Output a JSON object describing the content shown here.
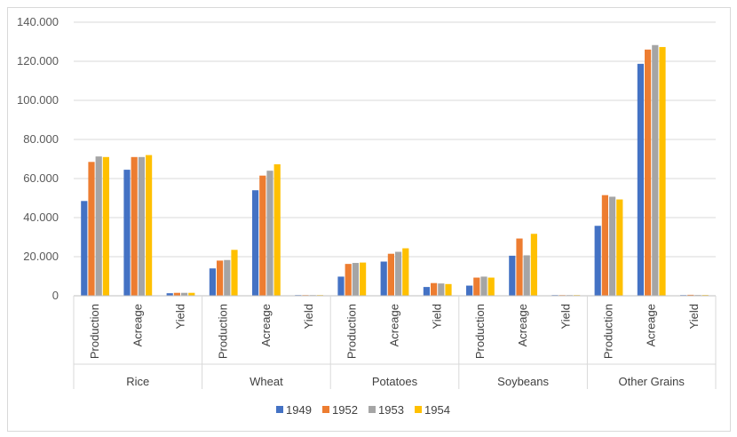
{
  "chart_data": {
    "type": "bar",
    "title": "",
    "xlabel": "",
    "ylabel": "",
    "ylim": [
      0,
      140000
    ],
    "yticks": [
      "0",
      "20.000",
      "40.000",
      "60.000",
      "80.000",
      "100.000",
      "120.000",
      "140.000"
    ],
    "ytick_values": [
      0,
      20000,
      40000,
      60000,
      80000,
      100000,
      120000,
      140000
    ],
    "grid": "horizontal",
    "legend_position": "bottom",
    "groups": [
      "Rice",
      "Wheat",
      "Potatoes",
      "Soybeans",
      "Other Grains"
    ],
    "subcategories": [
      "Production",
      "Acreage",
      "Yield"
    ],
    "series": [
      {
        "name": "1949",
        "color": "#4472C4",
        "values": [
          48500,
          64500,
          1300,
          14000,
          54000,
          300,
          9800,
          17500,
          4500,
          5200,
          20500,
          300,
          35800,
          118700,
          300
        ]
      },
      {
        "name": "1952",
        "color": "#ED7D31",
        "values": [
          68500,
          71000,
          1500,
          18000,
          61500,
          300,
          16300,
          21500,
          6500,
          9300,
          29300,
          300,
          51500,
          126000,
          500
        ]
      },
      {
        "name": "1953",
        "color": "#A5A5A5",
        "values": [
          71300,
          71000,
          1500,
          18300,
          64000,
          300,
          16800,
          22500,
          6300,
          9800,
          20700,
          300,
          50700,
          128300,
          400
        ]
      },
      {
        "name": "1954",
        "color": "#FFC000",
        "values": [
          71000,
          72000,
          1500,
          23500,
          67300,
          300,
          17000,
          24300,
          6000,
          9300,
          31700,
          300,
          49300,
          127300,
          400
        ]
      }
    ]
  }
}
